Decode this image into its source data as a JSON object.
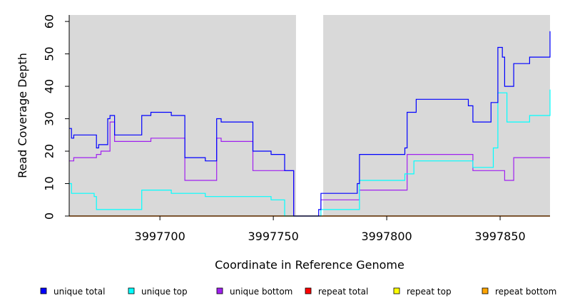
{
  "chart_data": {
    "type": "line",
    "xlabel": "Coordinate in Reference Genome",
    "ylabel": "Read Coverage Depth",
    "xlim": [
      3997660,
      3997872
    ],
    "ylim": [
      0,
      62
    ],
    "x_ticks": [
      3997700,
      3997750,
      3997800,
      3997850
    ],
    "x_tick_labels": [
      "3997700",
      "3997750",
      "3997800",
      "3997850"
    ],
    "y_ticks": [
      0,
      10,
      20,
      30,
      40,
      50,
      60
    ],
    "y_tick_labels": [
      "0",
      "10",
      "20",
      "30",
      "40",
      "50",
      "60"
    ],
    "plot_background": "#d9d9d9",
    "gap_region": [
      3997760,
      3997772
    ],
    "legend_position": "bottom",
    "series": [
      {
        "name": "unique total",
        "color": "#0000ff",
        "x": [
          3997660,
          3997661,
          3997662,
          3997672,
          3997673,
          3997677,
          3997678,
          3997680,
          3997692,
          3997696,
          3997705,
          3997711,
          3997720,
          3997725,
          3997727,
          3997741,
          3997749,
          3997755,
          3997759,
          3997768,
          3997770,
          3997771,
          3997772,
          3997787,
          3997788,
          3997789,
          3997808,
          3997809,
          3997810,
          3997813,
          3997836,
          3997838,
          3997846,
          3997849,
          3997850,
          3997851,
          3997852,
          3997853,
          3997856,
          3997863,
          3997872
        ],
        "y": [
          27,
          24,
          25,
          21,
          22,
          30,
          31,
          25,
          31,
          32,
          31,
          18,
          17,
          30,
          29,
          20,
          19,
          14,
          0,
          0,
          2,
          7,
          7,
          10,
          19,
          19,
          21,
          32,
          32,
          36,
          34,
          29,
          35,
          52,
          52,
          49,
          40,
          40,
          47,
          49,
          57
        ]
      },
      {
        "name": "unique top",
        "color": "#00ffff",
        "x": [
          3997660,
          3997661,
          3997671,
          3997672,
          3997692,
          3997705,
          3997720,
          3997749,
          3997755,
          3997759,
          3997768,
          3997771,
          3997772,
          3997788,
          3997789,
          3997808,
          3997812,
          3997838,
          3997847,
          3997849,
          3997850,
          3997853,
          3997863,
          3997872
        ],
        "y": [
          10,
          7,
          6,
          2,
          8,
          7,
          6,
          5,
          0,
          0,
          0,
          2,
          2,
          11,
          11,
          13,
          17,
          15,
          21,
          38,
          38,
          29,
          31,
          39
        ]
      },
      {
        "name": "unique bottom",
        "color": "#a020f0",
        "x": [
          3997660,
          3997662,
          3997672,
          3997674,
          3997678,
          3997680,
          3997696,
          3997711,
          3997725,
          3997727,
          3997741,
          3997759,
          3997768,
          3997771,
          3997772,
          3997788,
          3997789,
          3997808,
          3997809,
          3997838,
          3997852,
          3997856,
          3997872
        ],
        "y": [
          17,
          18,
          19,
          20,
          29,
          23,
          24,
          11,
          24,
          23,
          14,
          0,
          0,
          5,
          5,
          8,
          8,
          8,
          19,
          14,
          11,
          18,
          18
        ]
      },
      {
        "name": "repeat total",
        "color": "#ff0000",
        "x": [
          3997660,
          3997872
        ],
        "y": [
          0,
          0
        ]
      },
      {
        "name": "repeat top",
        "color": "#ffff00",
        "x": [
          3997660,
          3997872
        ],
        "y": [
          0,
          0
        ]
      },
      {
        "name": "repeat bottom",
        "color": "#ffa500",
        "x": [
          3997660,
          3997872
        ],
        "y": [
          0,
          0
        ]
      }
    ]
  }
}
